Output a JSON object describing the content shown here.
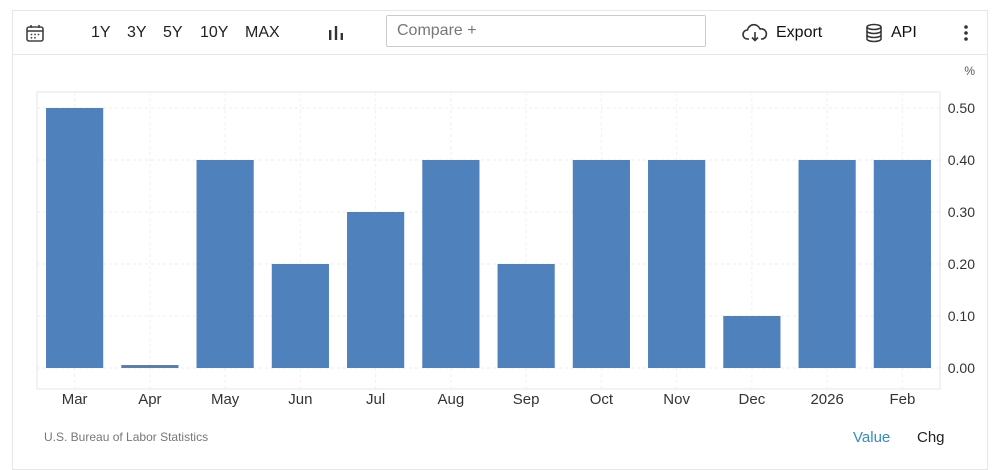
{
  "toolbar": {
    "calendar_icon": "calendar-icon",
    "ranges": [
      "1Y",
      "3Y",
      "5Y",
      "10Y",
      "MAX"
    ],
    "chart_type_icon": "bar-chart-icon",
    "compare_placeholder": "Compare +",
    "export_label": "Export",
    "export_icon": "cloud-download-icon",
    "api_label": "API",
    "api_icon": "database-icon",
    "more_icon": "more-vertical-icon"
  },
  "footer": {
    "source": "U.S. Bureau of Labor Statistics",
    "value_label": "Value",
    "chg_label": "Chg",
    "active_color": "#2f8fc4"
  },
  "chart_data": {
    "type": "bar",
    "categories": [
      "Mar",
      "Apr",
      "May",
      "Jun",
      "Jul",
      "Aug",
      "Sep",
      "Oct",
      "Nov",
      "Dec",
      "2026",
      "Feb"
    ],
    "values": [
      0.5,
      0.0,
      0.4,
      0.2,
      0.3,
      0.4,
      0.2,
      0.4,
      0.4,
      0.1,
      0.4,
      0.4
    ],
    "unit": "%",
    "ylim": [
      0,
      0.5
    ],
    "yticks": [
      "0.00",
      "0.10",
      "0.20",
      "0.30",
      "0.40",
      "0.50"
    ],
    "bar_color": "#4f81bd",
    "grid": true
  }
}
